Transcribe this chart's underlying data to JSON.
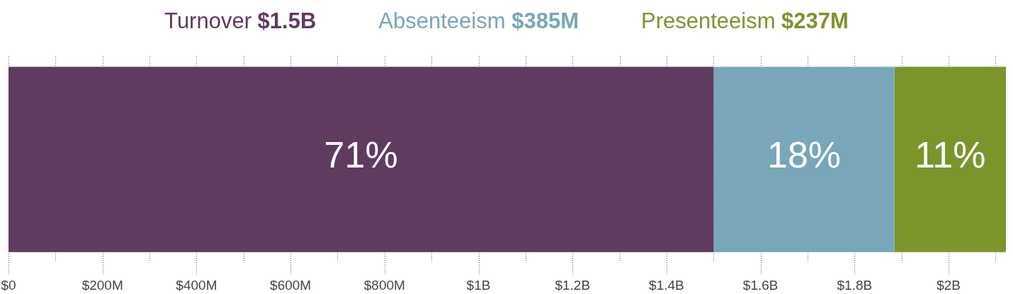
{
  "chart_data": {
    "type": "bar",
    "orientation": "horizontal",
    "stacked": true,
    "categories": [
      null
    ],
    "series": [
      {
        "name": "Turnover $1.5B",
        "color": "#5e3b5f",
        "values": [
          1500000000
        ]
      },
      {
        "name": "Absenteeism $385M",
        "color": "#79a6b9",
        "values": [
          385000000
        ]
      },
      {
        "name": "Presenteeism $237M",
        "color": "#7b952c",
        "values": [
          237000000
        ]
      }
    ],
    "annotations": [
      "71%",
      "18%",
      "11%"
    ],
    "xlim": [
      0,
      2122000000
    ],
    "xticks": [
      {
        "value": 0,
        "label": "$0"
      },
      {
        "value": 100000000,
        "label": null
      },
      {
        "value": 200000000,
        "label": "$200M"
      },
      {
        "value": 300000000,
        "label": null
      },
      {
        "value": 400000000,
        "label": "$400M"
      },
      {
        "value": 500000000,
        "label": null
      },
      {
        "value": 600000000,
        "label": "$600M"
      },
      {
        "value": 700000000,
        "label": null
      },
      {
        "value": 800000000,
        "label": "$800M"
      },
      {
        "value": 900000000,
        "label": null
      },
      {
        "value": 1000000000,
        "label": "$1B"
      },
      {
        "value": 1100000000,
        "label": null
      },
      {
        "value": 1200000000,
        "label": "$1.2B"
      },
      {
        "value": 1300000000,
        "label": null
      },
      {
        "value": 1400000000,
        "label": "$1.4B"
      },
      {
        "value": 1500000000,
        "label": null
      },
      {
        "value": 1600000000,
        "label": "$1.6B"
      },
      {
        "value": 1700000000,
        "label": null
      },
      {
        "value": 1800000000,
        "label": "$1.8B"
      },
      {
        "value": 1900000000,
        "label": null
      },
      {
        "value": 2000000000,
        "label": "$2B"
      },
      {
        "value": 2100000000,
        "label": null
      }
    ],
    "grid": "x",
    "legend": "top",
    "tick_labels": "x"
  }
}
